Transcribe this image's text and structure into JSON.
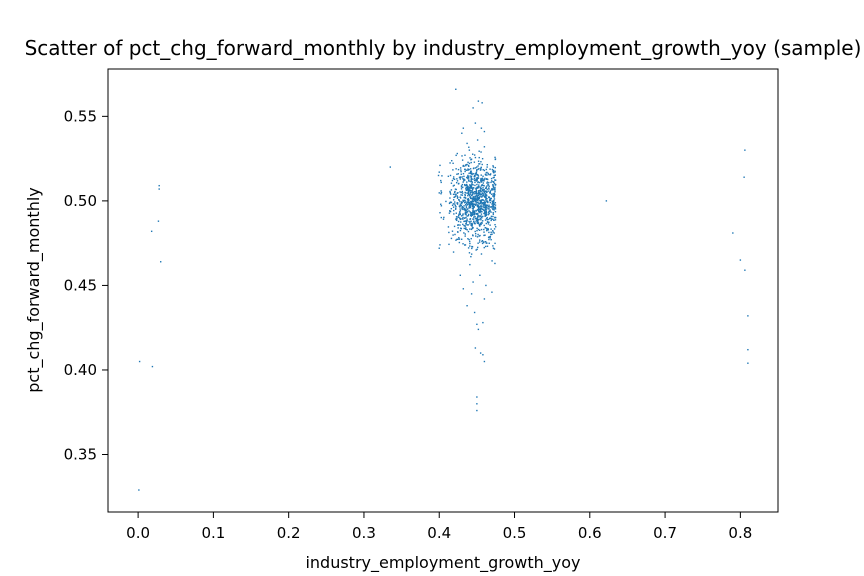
{
  "chart_data": {
    "type": "scatter",
    "title": "Scatter of pct_chg_forward_monthly by industry_employment_growth_yoy (sample)",
    "xlabel": "industry_employment_growth_yoy",
    "ylabel": "pct_chg_forward_monthly",
    "xlim": [
      -0.04,
      0.85
    ],
    "ylim": [
      0.316,
      0.578
    ],
    "xticks": [
      0.0,
      0.1,
      0.2,
      0.3,
      0.4,
      0.5,
      0.6,
      0.7,
      0.8
    ],
    "xtick_labels": [
      "0.0",
      "0.1",
      "0.2",
      "0.3",
      "0.4",
      "0.5",
      "0.6",
      "0.7",
      "0.8"
    ],
    "yticks": [
      0.35,
      0.4,
      0.45,
      0.5,
      0.55
    ],
    "ytick_labels": [
      "0.35",
      "0.40",
      "0.45",
      "0.50",
      "0.55"
    ],
    "grid": false,
    "marker_color": "#1f77b4",
    "series": [
      {
        "points": [
          [
            0.001,
            0.329
          ],
          [
            0.002,
            0.405
          ],
          [
            0.019,
            0.402
          ],
          [
            0.018,
            0.482
          ],
          [
            0.027,
            0.488
          ],
          [
            0.028,
            0.507
          ],
          [
            0.028,
            0.509
          ],
          [
            0.03,
            0.464
          ],
          [
            0.335,
            0.52
          ],
          [
            0.622,
            0.5
          ],
          [
            0.79,
            0.481
          ],
          [
            0.8,
            0.465
          ],
          [
            0.805,
            0.514
          ],
          [
            0.806,
            0.53
          ],
          [
            0.806,
            0.459
          ],
          [
            0.81,
            0.432
          ],
          [
            0.81,
            0.412
          ],
          [
            0.81,
            0.404
          ],
          [
            0.422,
            0.566
          ],
          [
            0.452,
            0.559
          ],
          [
            0.457,
            0.558
          ],
          [
            0.445,
            0.555
          ],
          [
            0.448,
            0.546
          ],
          [
            0.432,
            0.543
          ],
          [
            0.43,
            0.54
          ],
          [
            0.46,
            0.541
          ],
          [
            0.456,
            0.543
          ],
          [
            0.451,
            0.536
          ],
          [
            0.437,
            0.534
          ],
          [
            0.46,
            0.532
          ],
          [
            0.44,
            0.53
          ],
          [
            0.424,
            0.528
          ],
          [
            0.45,
            0.38
          ],
          [
            0.45,
            0.384
          ],
          [
            0.45,
            0.376
          ],
          [
            0.448,
            0.413
          ],
          [
            0.455,
            0.41
          ],
          [
            0.46,
            0.405
          ],
          [
            0.458,
            0.409
          ],
          [
            0.452,
            0.424
          ],
          [
            0.45,
            0.427
          ],
          [
            0.458,
            0.428
          ],
          [
            0.447,
            0.434
          ],
          [
            0.46,
            0.442
          ],
          [
            0.443,
            0.445
          ],
          [
            0.432,
            0.448
          ],
          [
            0.47,
            0.446
          ],
          [
            0.454,
            0.456
          ],
          [
            0.445,
            0.452
          ],
          [
            0.437,
            0.438
          ],
          [
            0.462,
            0.45
          ],
          [
            0.428,
            0.456
          ],
          [
            0.401,
            0.474
          ],
          [
            0.4,
            0.472
          ],
          [
            0.401,
            0.521
          ],
          [
            0.4,
            0.517
          ],
          [
            0.402,
            0.512
          ],
          [
            0.403,
            0.505
          ],
          [
            0.402,
            0.498
          ],
          [
            0.401,
            0.493
          ],
          [
            0.472,
            0.52
          ],
          [
            0.473,
            0.515
          ],
          [
            0.474,
            0.508
          ],
          [
            0.473,
            0.498
          ],
          [
            0.474,
            0.49
          ],
          [
            0.473,
            0.481
          ],
          [
            0.472,
            0.472
          ],
          [
            0.474,
            0.463
          ]
        ]
      }
    ]
  }
}
